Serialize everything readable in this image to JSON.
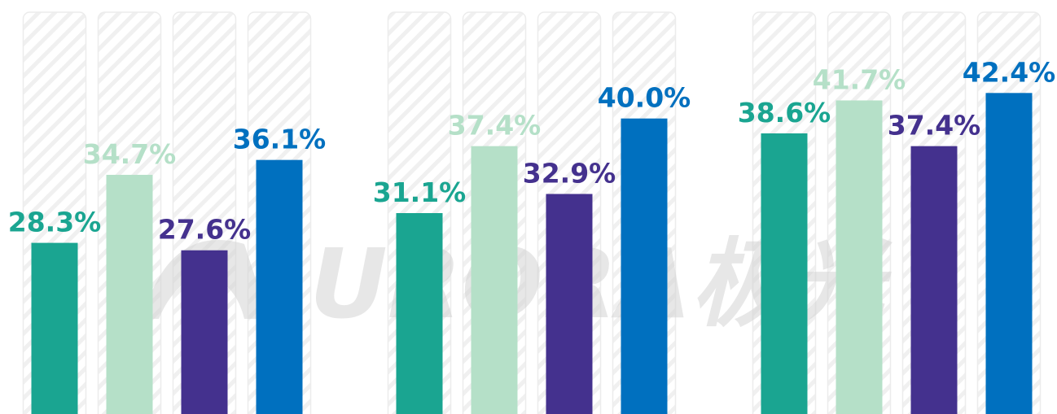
{
  "chart_data": {
    "type": "bar",
    "watermark": "URORA极光",
    "categories": [
      null,
      null,
      null
    ],
    "series": [
      {
        "color": "#1aa591",
        "values": [
          28.3,
          31.1,
          38.6
        ],
        "value_labels": [
          "28.3%",
          "31.1%",
          "38.6%"
        ]
      },
      {
        "color": "#b5e0c8",
        "values": [
          34.7,
          37.4,
          41.7
        ],
        "value_labels": [
          "34.7%",
          "37.4%",
          "41.7%"
        ]
      },
      {
        "color": "#44318e",
        "values": [
          27.6,
          32.9,
          37.4
        ],
        "value_labels": [
          "27.6%",
          "32.9%",
          "37.4%"
        ]
      },
      {
        "color": "#0070bf",
        "values": [
          36.1,
          40.0,
          42.4
        ],
        "value_labels": [
          "36.1%",
          "40.0%",
          "42.4%"
        ]
      }
    ],
    "ylim": [
      12.2,
      50
    ]
  }
}
